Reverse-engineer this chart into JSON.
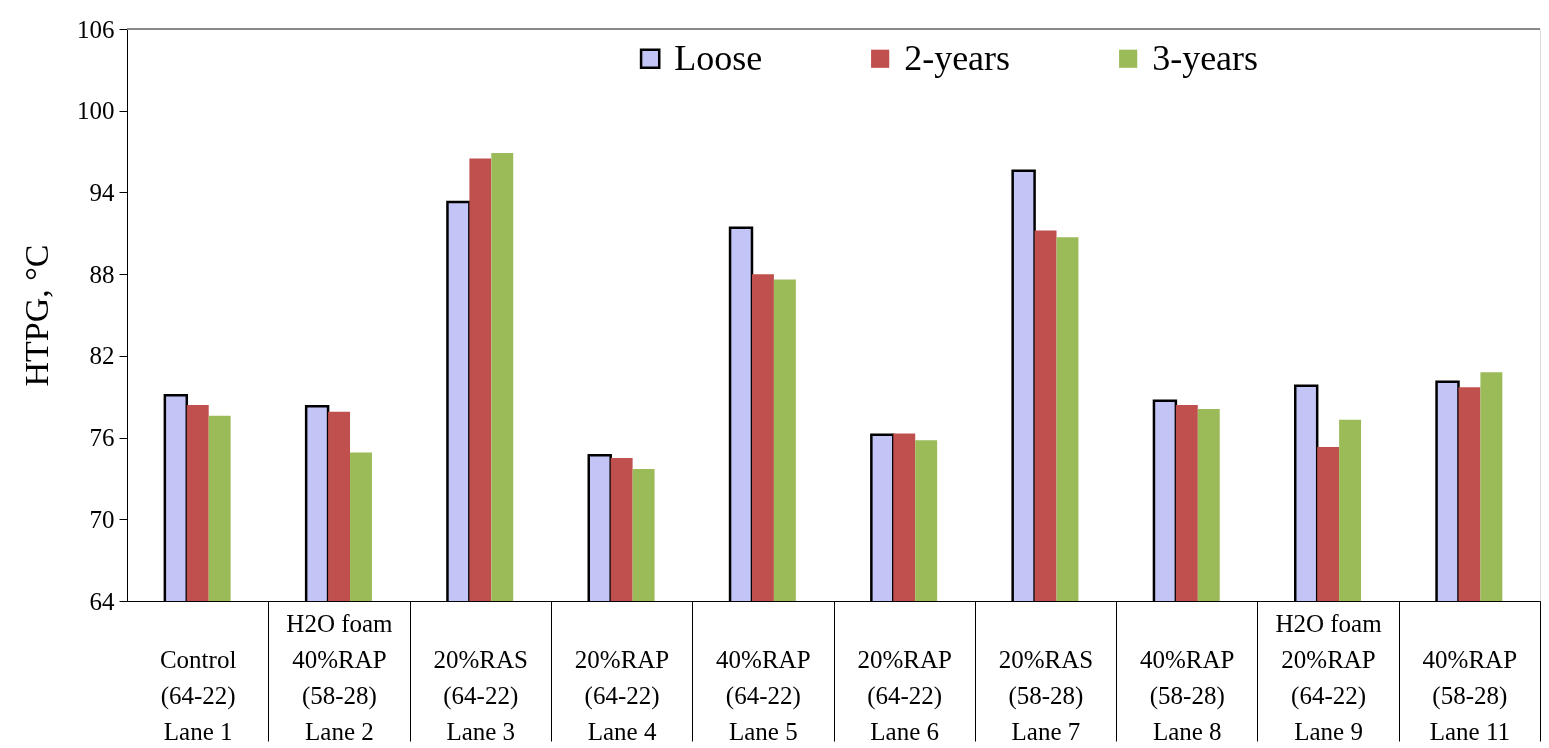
{
  "chart_data": {
    "type": "bar",
    "ylabel": "HTPG, °C",
    "categories": [
      "Control\n(64-22)\nLane 1",
      "H2O foam\n40%RAP\n(58-28)\nLane 2",
      "20%RAS\n(64-22)\nLane 3",
      "20%RAP\n(64-22)\nLane 4",
      "40%RAP\n(64-22)\nLane 5",
      "20%RAP\n(64-22)\nLane 6",
      "20%RAS\n(58-28)\nLane 7",
      "40%RAP\n(58-28)\nLane 8",
      "H2O foam\n20%RAP\n(64-22)\nLane 9",
      "40%RAP\n(58-28)\nLane 11"
    ],
    "series": [
      {
        "name": "Loose",
        "color": "#c3c5f7",
        "values": [
          79.1,
          78.3,
          93.3,
          74.7,
          91.4,
          76.2,
          95.6,
          78.7,
          79.8,
          80.1
        ]
      },
      {
        "name": "2-years",
        "color": "#c0504d",
        "values": [
          78.4,
          77.9,
          96.5,
          74.5,
          88.0,
          76.3,
          91.2,
          78.4,
          75.3,
          79.7
        ]
      },
      {
        "name": "3-years",
        "color": "#9bbb59",
        "values": [
          77.6,
          74.9,
          96.9,
          73.7,
          87.6,
          75.8,
          90.7,
          78.1,
          77.3,
          80.8
        ]
      }
    ],
    "ylim": [
      64,
      106
    ],
    "yticks": [
      64,
      70,
      76,
      82,
      88,
      94,
      100,
      106
    ],
    "legend": "top"
  }
}
